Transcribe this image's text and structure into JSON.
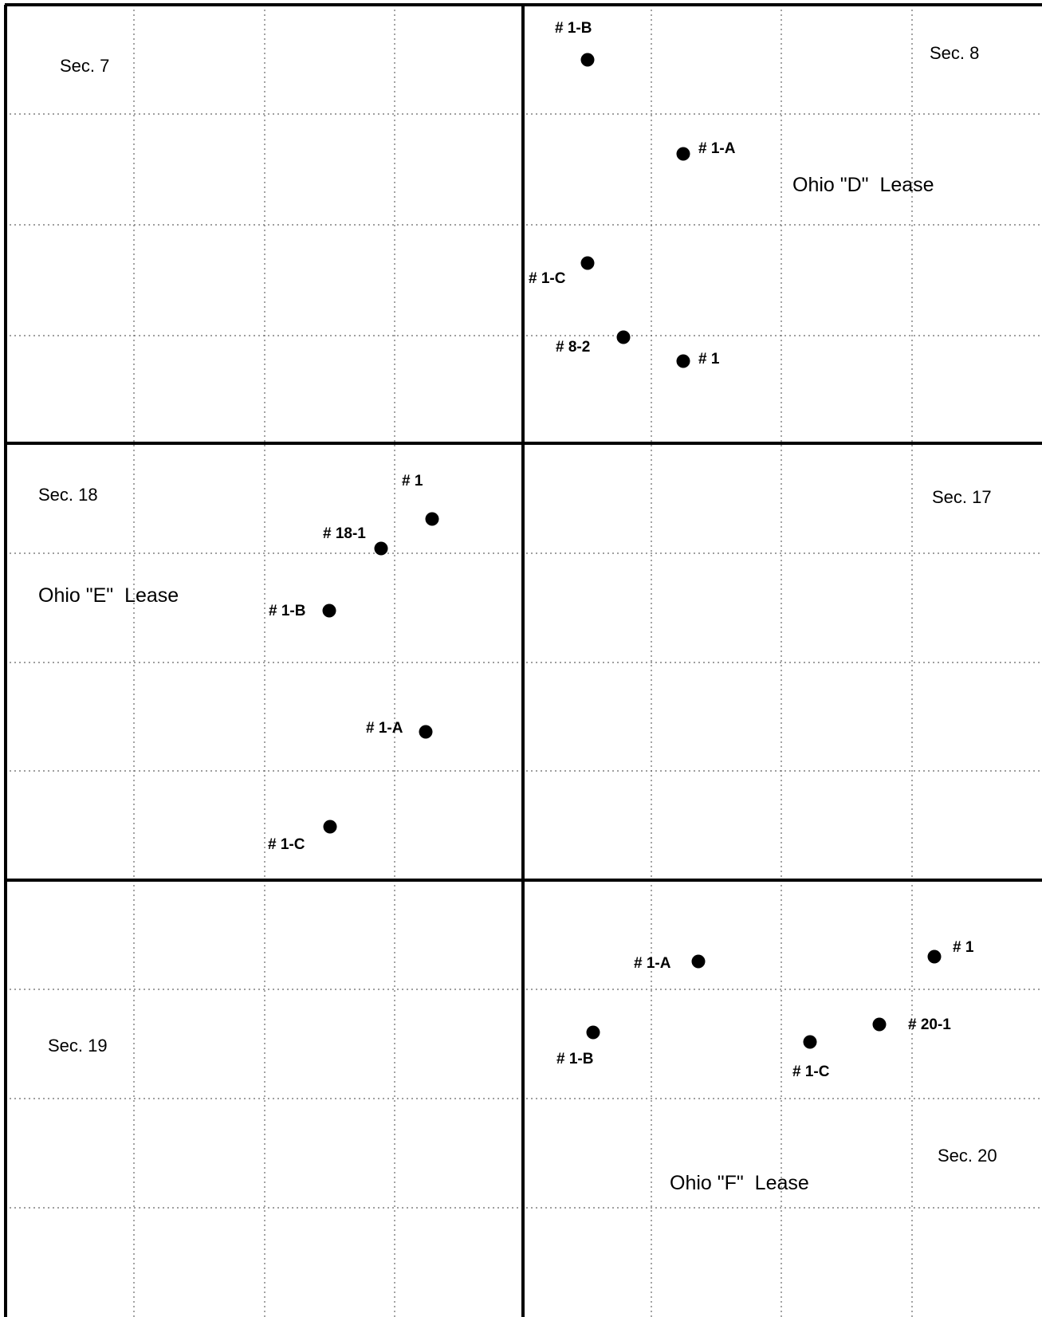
{
  "sections": [
    {
      "id": "sec-7",
      "label": "Sec. 7"
    },
    {
      "id": "sec-8",
      "label": "Sec. 8"
    },
    {
      "id": "sec-18",
      "label": "Sec. 18"
    },
    {
      "id": "sec-17",
      "label": "Sec. 17"
    },
    {
      "id": "sec-19",
      "label": "Sec. 19"
    },
    {
      "id": "sec-20",
      "label": "Sec. 20"
    }
  ],
  "leases": [
    {
      "id": "ohio-d",
      "label": "Ohio \"D\"  Lease"
    },
    {
      "id": "ohio-e",
      "label": "Ohio \"E\"  Lease"
    },
    {
      "id": "ohio-f",
      "label": "Ohio \"F\"  Lease"
    }
  ],
  "wells": {
    "sec8": [
      {
        "id": "sec8-1-b",
        "label": "# 1-B"
      },
      {
        "id": "sec8-1-a",
        "label": "# 1-A"
      },
      {
        "id": "sec8-1-c",
        "label": "# 1-C"
      },
      {
        "id": "sec8-8-2",
        "label": "# 8-2"
      },
      {
        "id": "sec8-1",
        "label": "# 1"
      }
    ],
    "sec18": [
      {
        "id": "sec18-1",
        "label": "# 1"
      },
      {
        "id": "sec18-18-1",
        "label": "# 18-1"
      },
      {
        "id": "sec18-1-b",
        "label": "# 1-B"
      },
      {
        "id": "sec18-1-a",
        "label": "# 1-A"
      },
      {
        "id": "sec18-1-c",
        "label": "# 1-C"
      }
    ],
    "sec20": [
      {
        "id": "sec20-1-a",
        "label": "# 1-A"
      },
      {
        "id": "sec20-1",
        "label": "# 1"
      },
      {
        "id": "sec20-1-b",
        "label": "# 1-B"
      },
      {
        "id": "sec20-20-1",
        "label": "# 20-1"
      },
      {
        "id": "sec20-1-c",
        "label": "# 1-C"
      }
    ]
  }
}
